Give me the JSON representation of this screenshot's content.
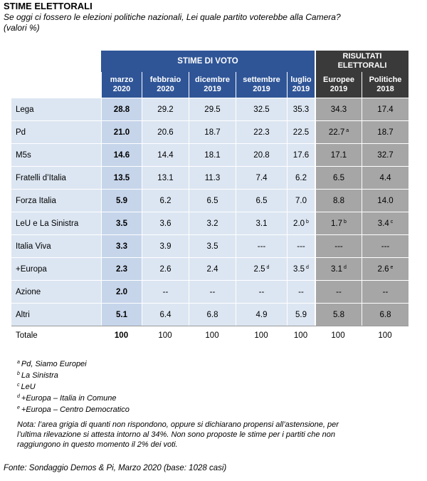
{
  "title": "STIME ELETTORALI",
  "question": "Se oggi ci fossero le elezioni politiche nazionali,  Lei quale partito voterebbe alla Camera?",
  "unit": "(valori %)",
  "group_headers": {
    "stime": "STIME DI VOTO",
    "risultati_line1": "RISULTATI",
    "risultati_line2": "ELETTORALI"
  },
  "columns": [
    {
      "l1": "marzo",
      "l2": "2020"
    },
    {
      "l1": "febbraio",
      "l2": "2020"
    },
    {
      "l1": "dicembre",
      "l2": "2019"
    },
    {
      "l1": "settembre",
      "l2": "2019"
    },
    {
      "l1": "luglio",
      "l2": "2019"
    },
    {
      "l1": "Europee",
      "l2": "2019"
    },
    {
      "l1": "Politiche",
      "l2": "2018"
    }
  ],
  "rows": [
    {
      "party": "Lega",
      "values": [
        {
          "v": "28.8"
        },
        {
          "v": "29.2"
        },
        {
          "v": "29.5"
        },
        {
          "v": "32.5"
        },
        {
          "v": "35.3"
        },
        {
          "v": "34.3"
        },
        {
          "v": "17.4"
        }
      ]
    },
    {
      "party": "Pd",
      "values": [
        {
          "v": "21.0"
        },
        {
          "v": "20.6"
        },
        {
          "v": "18.7"
        },
        {
          "v": "22.3"
        },
        {
          "v": "22.5"
        },
        {
          "v": "22.7",
          "sup": "a"
        },
        {
          "v": "18.7"
        }
      ]
    },
    {
      "party": "M5s",
      "values": [
        {
          "v": "14.6"
        },
        {
          "v": "14.4"
        },
        {
          "v": "18.1"
        },
        {
          "v": "20.8"
        },
        {
          "v": "17.6"
        },
        {
          "v": "17.1"
        },
        {
          "v": "32.7"
        }
      ]
    },
    {
      "party": "Fratelli d’Italia",
      "values": [
        {
          "v": "13.5"
        },
        {
          "v": "13.1"
        },
        {
          "v": "11.3"
        },
        {
          "v": "7.4"
        },
        {
          "v": "6.2"
        },
        {
          "v": "6.5"
        },
        {
          "v": "4.4"
        }
      ]
    },
    {
      "party": "Forza Italia",
      "values": [
        {
          "v": "5.9"
        },
        {
          "v": "6.2"
        },
        {
          "v": "6.5"
        },
        {
          "v": "6.5"
        },
        {
          "v": "7.0"
        },
        {
          "v": "8.8"
        },
        {
          "v": "14.0"
        }
      ]
    },
    {
      "party": "LeU e La Sinistra",
      "values": [
        {
          "v": "3.5"
        },
        {
          "v": "3.6"
        },
        {
          "v": "3.2"
        },
        {
          "v": "3.1"
        },
        {
          "v": "2.0",
          "sup": "b"
        },
        {
          "v": "1.7",
          "sup": "b"
        },
        {
          "v": "3.4",
          "sup": "c"
        }
      ]
    },
    {
      "party": "Italia Viva",
      "values": [
        {
          "v": "3.3"
        },
        {
          "v": "3.9"
        },
        {
          "v": "3.5"
        },
        {
          "v": "---"
        },
        {
          "v": "---"
        },
        {
          "v": "---"
        },
        {
          "v": "---"
        }
      ]
    },
    {
      "party": "+Europa",
      "values": [
        {
          "v": "2.3"
        },
        {
          "v": "2.6"
        },
        {
          "v": "2.4"
        },
        {
          "v": "2.5",
          "sup": "d"
        },
        {
          "v": "3.5",
          "sup": "d"
        },
        {
          "v": "3.1",
          "sup": "d"
        },
        {
          "v": "2.6",
          "sup": "e"
        }
      ]
    },
    {
      "party": "Azione",
      "values": [
        {
          "v": "2.0"
        },
        {
          "v": "--"
        },
        {
          "v": "--"
        },
        {
          "v": "--"
        },
        {
          "v": "--"
        },
        {
          "v": "--"
        },
        {
          "v": "--"
        }
      ]
    },
    {
      "party": "Altri",
      "values": [
        {
          "v": "5.1"
        },
        {
          "v": "6.4"
        },
        {
          "v": "6.8"
        },
        {
          "v": "4.9"
        },
        {
          "v": "5.9"
        },
        {
          "v": "5.8"
        },
        {
          "v": "6.8"
        }
      ]
    }
  ],
  "total": {
    "label": "Totale",
    "values": [
      "100",
      "100",
      "100",
      "100",
      "100",
      "100",
      "100"
    ]
  },
  "footnotes": [
    {
      "mark": "a",
      "text": "Pd, Siamo Europei"
    },
    {
      "mark": "b",
      "text": "La Sinistra"
    },
    {
      "mark": "c",
      "text": "LeU"
    },
    {
      "mark": "d",
      "text": "+Europa – Italia in Comune"
    },
    {
      "mark": "e",
      "text": "+Europa – Centro Democratico"
    }
  ],
  "nota": "Nota: l’area grigia di quanti non rispondono, oppure si dichiarano propensi all’astensione, per l’ultima rilevazione si attesta intorno al 34%. Non sono proposte le stime per i partiti che non raggiungono in questo momento il 2% dei voti.",
  "fonte": "Fonte: Sondaggio Demos & Pi, Marzo 2020 (base: 1028 casi)",
  "colors": {
    "stime_header": "#2f5597",
    "risultati_header": "#3a3a3a",
    "estimate_cells": "#dce6f2",
    "current_cells": "#c6d5ea",
    "results_cells": "#a6a6a6"
  }
}
